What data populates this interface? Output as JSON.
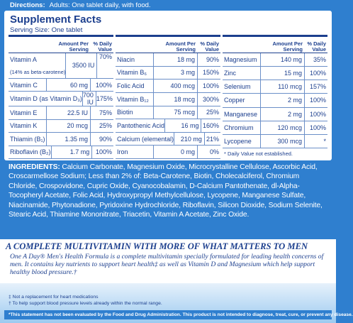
{
  "directions": {
    "label": "Directions:",
    "text": "Adults: One tablet daily, with food."
  },
  "facts": {
    "title": "Supplement Facts",
    "serving": "Serving Size: One tablet",
    "columns": [
      {
        "header": {
          "amount": "Amount Per Serving",
          "dv": "% Daily Value"
        },
        "rows": [
          {
            "name": "Vitamin A",
            "note": "(14% as beta-carotene)",
            "amount": "3500 IU",
            "dv": "70%"
          },
          {
            "name": "Vitamin C",
            "amount": "60 mg",
            "dv": "100%"
          },
          {
            "name": "Vitamin D (as Vitamin D₃)",
            "amount": "700 IU",
            "dv": "175%"
          },
          {
            "name": "Vitamin E",
            "amount": "22.5 IU",
            "dv": "75%"
          },
          {
            "name": "Vitamin K",
            "amount": "20 mcg",
            "dv": "25%"
          },
          {
            "name": "Thiamin (B₁)",
            "amount": "1.35 mg",
            "dv": "90%"
          },
          {
            "name": "Riboflavin (B₂)",
            "amount": "1.7 mg",
            "dv": "100%"
          }
        ]
      },
      {
        "header": {
          "amount": "Amount Per Serving",
          "dv": "% Daily Value"
        },
        "rows": [
          {
            "name": "Niacin",
            "amount": "18 mg",
            "dv": "90%"
          },
          {
            "name": "Vitamin B₆",
            "amount": "3 mg",
            "dv": "150%"
          },
          {
            "name": "Folic Acid",
            "amount": "400 mcg",
            "dv": "100%"
          },
          {
            "name": "Vitamin B₁₂",
            "amount": "18 mcg",
            "dv": "300%"
          },
          {
            "name": "Biotin",
            "amount": "75 mcg",
            "dv": "25%"
          },
          {
            "name": "Pantothenic Acid",
            "amount": "16 mg",
            "dv": "160%"
          },
          {
            "name": "Calcium (elemental)",
            "amount": "210 mg",
            "dv": "21%"
          },
          {
            "name": "Iron",
            "amount": "0 mg",
            "dv": "0%"
          }
        ]
      },
      {
        "header": {
          "amount": "Amount Per Serving",
          "dv": "% Daily Value"
        },
        "rows": [
          {
            "name": "Magnesium",
            "amount": "140 mg",
            "dv": "35%"
          },
          {
            "name": "Zinc",
            "amount": "15 mg",
            "dv": "100%"
          },
          {
            "name": "Selenium",
            "amount": "110 mcg",
            "dv": "157%"
          },
          {
            "name": "Copper",
            "amount": "2 mg",
            "dv": "100%"
          },
          {
            "name": "Manganese",
            "amount": "2 mg",
            "dv": "100%"
          },
          {
            "name": "Chromium",
            "amount": "120 mcg",
            "dv": "100%"
          },
          {
            "name": "Lycopene",
            "amount": "300 mcg",
            "dv": "*"
          }
        ],
        "footnote": "* Daily Value not established."
      }
    ]
  },
  "ingredients": {
    "label": "INGREDIENTS:",
    "text": "Calcium Carbonate, Magnesium Oxide, Microcrystalline Cellulose, Ascorbic Acid, Croscarmellose Sodium; Less than 2% of: Beta-Carotene, Biotin, Cholecalciferol, Chromium Chloride, Crospovidone, Cupric Oxide, Cyanocobalamin, D-Calcium Pantothenate, dl-Alpha-Tocopheryl Acetate, Folic Acid, Hydroxypropyl Methylcellulose, Lycopene, Manganese Sulfate, Niacinamide, Phytonadione, Pyridoxine Hydrochloride, Riboflavin, Silicon Dioxide, Sodium Selenite, Stearic Acid, Thiamine Mononitrate, Triacetin, Vitamin A Acetate, Zinc Oxide."
  },
  "claim": {
    "heading": "A COMPLETE MULTIVITAMIN WITH MORE OF WHAT MATTERS TO MEN",
    "text": "One A Day® Men's Health Formula is a complete multivitamin specially formulated for leading health concerns of men. It contains key nutrients to support heart health‡ as well as Vitamin D and Magnesium which help support healthy blood pressure.†"
  },
  "footnotes": [
    "‡ Not a replacement for heart medications",
    "† To help support blood pressure levels already within the normal range."
  ],
  "disclaimer": "*This statement has not been evaluated by the Food and Drug Administration. This product is not intended to diagnose, treat, cure, or prevent any disease."
}
